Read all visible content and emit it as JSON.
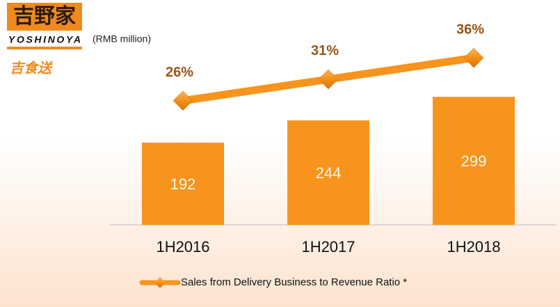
{
  "logo": {
    "name": "吉野家",
    "brand": "YOSHINOYA",
    "service": "吉食送"
  },
  "chart_data": {
    "type": "bar",
    "unit_label": "(RMB million)",
    "categories": [
      "1H2016",
      "1H2017",
      "1H2018"
    ],
    "ylim": [
      0,
      400
    ],
    "y2lim": [
      -3,
      37
    ],
    "series": [
      {
        "type": "bar",
        "color": "#f7941d",
        "values": [
          192,
          244,
          299
        ]
      },
      {
        "type": "line",
        "axis": "y2",
        "name": "Sales from Delivery Business to Revenue Ratio *",
        "color": "#f7941d",
        "values": [
          26,
          31,
          36
        ],
        "value_labels": [
          "26%",
          "31%",
          "36%"
        ]
      }
    ]
  }
}
